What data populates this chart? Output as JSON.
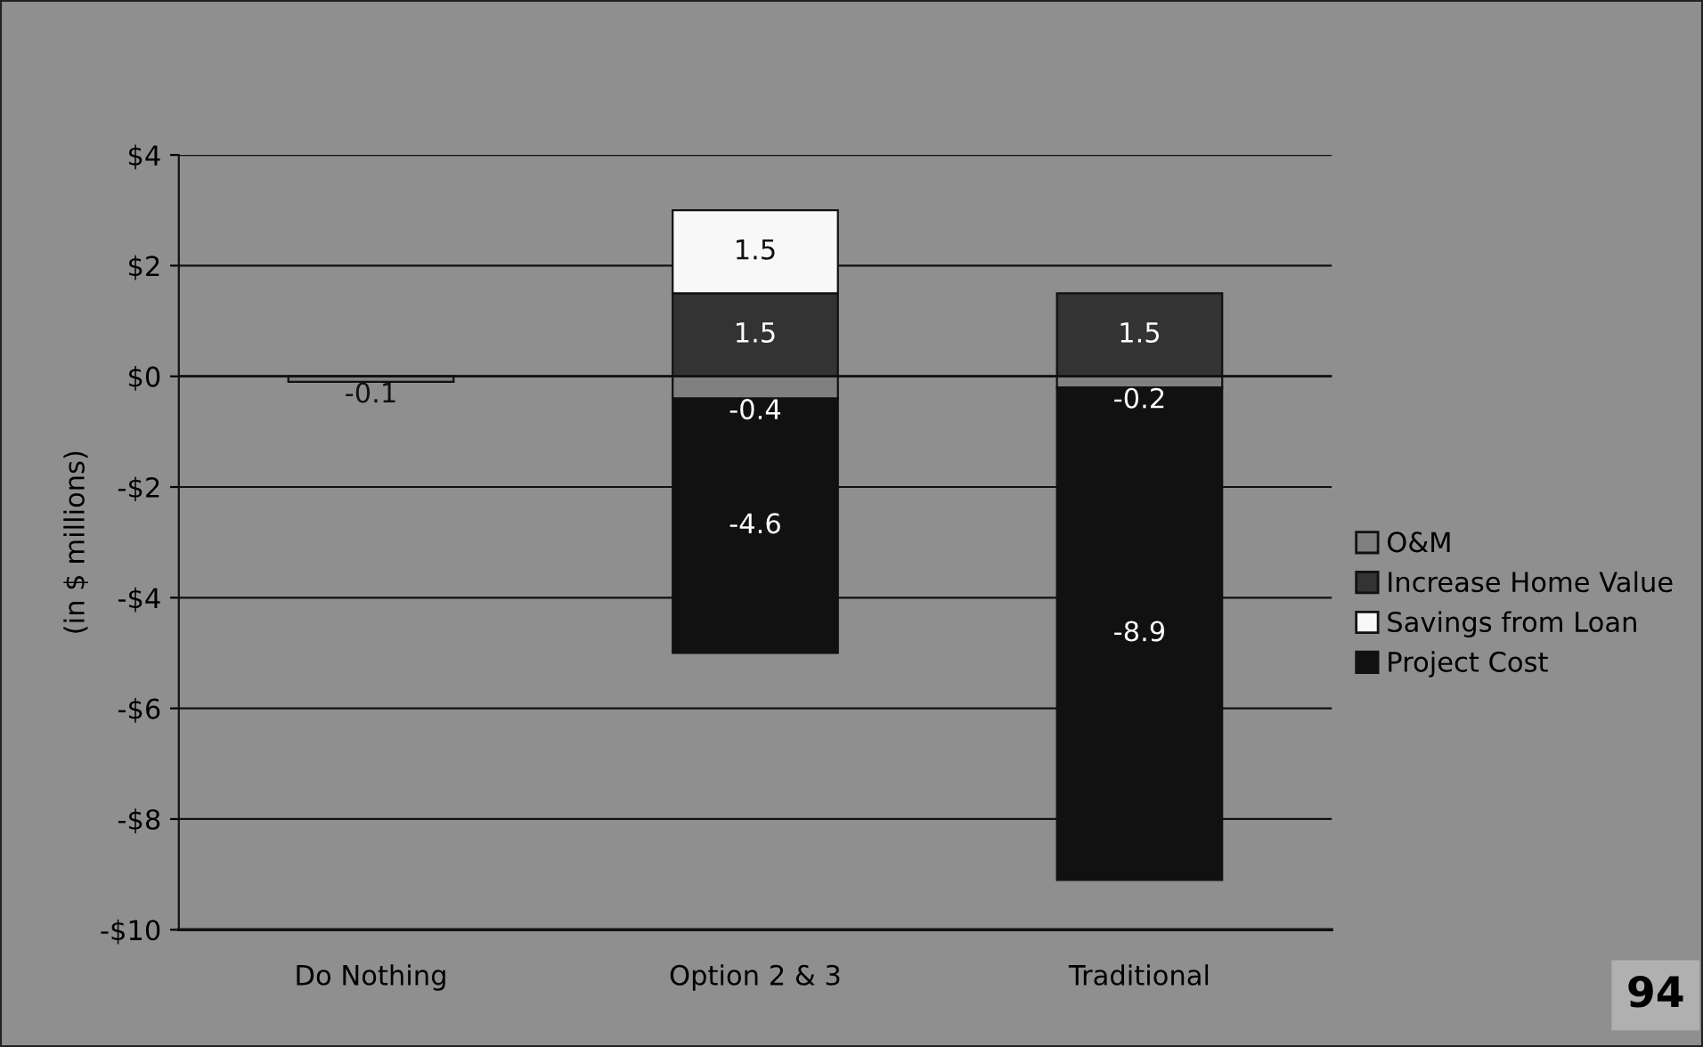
{
  "chart_data": {
    "type": "bar",
    "stacked": true,
    "ylabel": "(in $ millions)",
    "categories": [
      "Do Nothing",
      "Option 2 & 3",
      "Traditional"
    ],
    "series": [
      {
        "name": "O&M",
        "color": "#808080",
        "values": [
          -0.1,
          -0.4,
          -0.2
        ]
      },
      {
        "name": "Increase Home Value",
        "color": "#333333",
        "values": [
          null,
          1.5,
          1.5
        ]
      },
      {
        "name": "Savings from Loan",
        "color": "#f8f8f8",
        "values": [
          null,
          1.5,
          null
        ]
      },
      {
        "name": "Project Cost",
        "color": "#111111",
        "values": [
          null,
          -4.6,
          -8.9
        ]
      }
    ],
    "ylim": [
      -10,
      4
    ],
    "yticks": [
      {
        "value": -10,
        "label": "-$10"
      },
      {
        "value": -8,
        "label": "-$8"
      },
      {
        "value": -6,
        "label": "-$6"
      },
      {
        "value": -4,
        "label": "-$4"
      },
      {
        "value": -2,
        "label": "-$2"
      },
      {
        "value": 0,
        "label": "$0"
      },
      {
        "value": 2,
        "label": "$2"
      },
      {
        "value": 4,
        "label": "$4"
      }
    ],
    "grid": "y",
    "legend": "right",
    "data_labels": true,
    "annotations": [
      {
        "text": "94"
      }
    ]
  }
}
